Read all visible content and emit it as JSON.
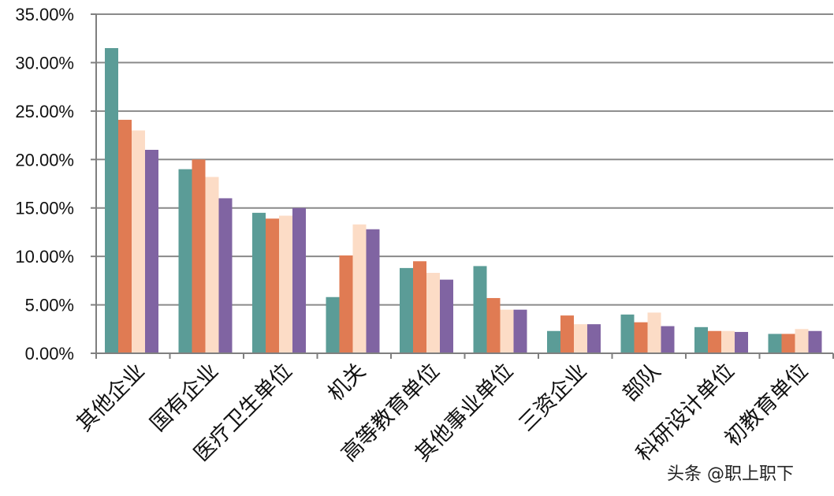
{
  "chart_data": {
    "type": "bar",
    "categories": [
      "其他企业",
      "国有企业",
      "医疗卫生单位",
      "机关",
      "高等教育单位",
      "其他事业单位",
      "三资企业",
      "部队",
      "科研设计单位",
      "初教育单位"
    ],
    "series": [
      {
        "values": [
          31.5,
          19.0,
          14.5,
          5.8,
          8.8,
          9.0,
          2.3,
          4.0,
          2.7,
          2.0
        ],
        "color": "#5b9c97"
      },
      {
        "values": [
          24.1,
          20.0,
          13.9,
          10.1,
          9.5,
          5.7,
          3.9,
          3.2,
          2.3,
          2.0
        ],
        "color": "#e07b53"
      },
      {
        "values": [
          23.0,
          18.2,
          14.2,
          13.3,
          8.3,
          4.5,
          3.0,
          4.2,
          2.3,
          2.5
        ],
        "color": "#fcdcc6"
      },
      {
        "values": [
          21.0,
          16.0,
          15.0,
          12.8,
          7.6,
          4.5,
          3.0,
          2.8,
          2.2,
          2.3
        ],
        "color": "#8064a2"
      }
    ],
    "ylim": [
      0,
      35
    ],
    "yticks": [
      "0.00%",
      "5.00%",
      "10.00%",
      "15.00%",
      "20.00%",
      "25.00%",
      "30.00%",
      "35.00%"
    ],
    "grid": true,
    "title": "",
    "xlabel": "",
    "ylabel": ""
  },
  "watermark": {
    "text": "头条 @职上职下"
  }
}
